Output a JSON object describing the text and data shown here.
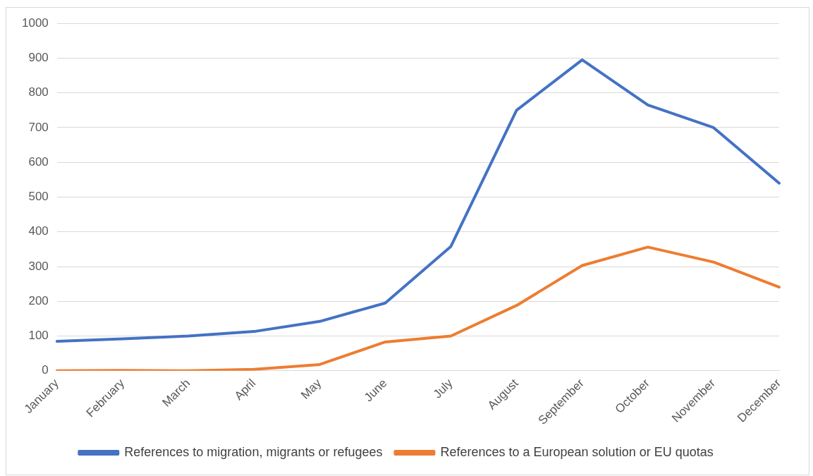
{
  "chart_data": {
    "type": "line",
    "categories": [
      "January",
      "February",
      "March",
      "April",
      "May",
      "June",
      "July",
      "August",
      "September",
      "October",
      "November",
      "December"
    ],
    "series": [
      {
        "name": "References to migration, migrants or refugees",
        "color": "#4472c4",
        "values": [
          85,
          92,
          100,
          113,
          142,
          195,
          358,
          750,
          895,
          765,
          700,
          540
        ]
      },
      {
        "name": "References to a European solution or EU quotas",
        "color": "#ed7d31",
        "values": [
          0,
          1,
          0,
          4,
          18,
          83,
          100,
          188,
          303,
          356,
          313,
          241
        ]
      }
    ],
    "ylim": [
      0,
      1000
    ],
    "yticks": [
      0,
      100,
      200,
      300,
      400,
      500,
      600,
      700,
      800,
      900,
      1000
    ],
    "grid": "y",
    "legend": "bottom",
    "marker": "none",
    "line_style": "solid"
  }
}
